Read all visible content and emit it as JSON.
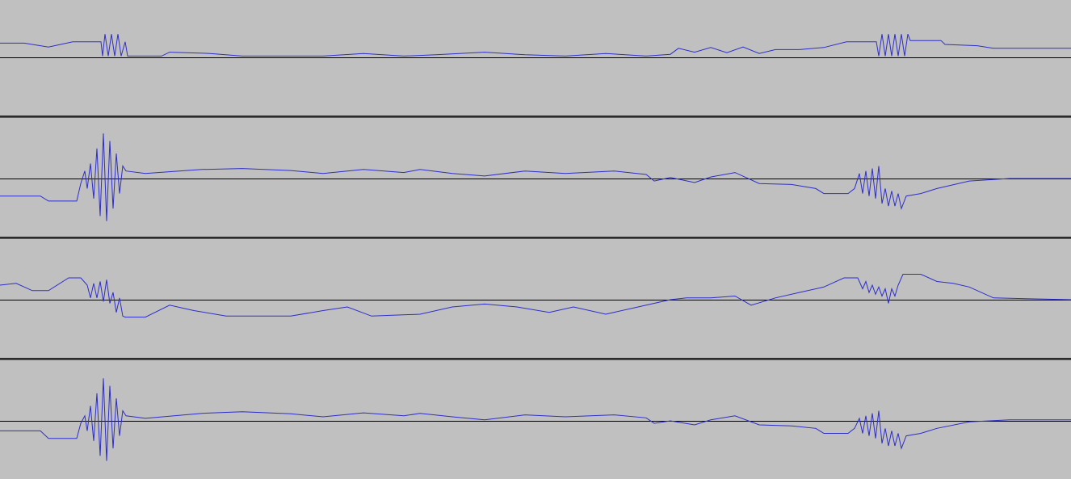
{
  "app": {
    "view": "waveform-tracks"
  },
  "colors": {
    "background": "#c0c0c0",
    "waveform": "#2d2dcc",
    "baseline": "#000000",
    "separator": "#2b2b2b"
  },
  "tracks": [
    {
      "name": "track-1",
      "waveform": [
        [
          0,
          0.55
        ],
        [
          30,
          0.55
        ],
        [
          60,
          0.4
        ],
        [
          90,
          0.6
        ],
        [
          125,
          0.6
        ],
        [
          127,
          0.05
        ],
        [
          130,
          0.9
        ],
        [
          134,
          0.05
        ],
        [
          138,
          0.9
        ],
        [
          142,
          0.05
        ],
        [
          146,
          0.9
        ],
        [
          150,
          0.05
        ],
        [
          155,
          0.6
        ],
        [
          158,
          0.05
        ],
        [
          200,
          0.05
        ],
        [
          210,
          0.2
        ],
        [
          260,
          0.15
        ],
        [
          300,
          0.05
        ],
        [
          400,
          0.05
        ],
        [
          450,
          0.15
        ],
        [
          500,
          0.05
        ],
        [
          540,
          0.1
        ],
        [
          600,
          0.2
        ],
        [
          650,
          0.1
        ],
        [
          700,
          0.05
        ],
        [
          750,
          0.15
        ],
        [
          800,
          0.05
        ],
        [
          830,
          0.12
        ],
        [
          840,
          0.35
        ],
        [
          860,
          0.2
        ],
        [
          880,
          0.38
        ],
        [
          900,
          0.18
        ],
        [
          920,
          0.4
        ],
        [
          940,
          0.15
        ],
        [
          960,
          0.3
        ],
        [
          990,
          0.3
        ],
        [
          1020,
          0.38
        ],
        [
          1048,
          0.6
        ],
        [
          1085,
          0.6
        ],
        [
          1088,
          0.05
        ],
        [
          1092,
          0.9
        ],
        [
          1096,
          0.05
        ],
        [
          1100,
          0.9
        ],
        [
          1104,
          0.05
        ],
        [
          1108,
          0.9
        ],
        [
          1112,
          0.05
        ],
        [
          1116,
          0.9
        ],
        [
          1120,
          0.05
        ],
        [
          1124,
          0.9
        ],
        [
          1127,
          0.65
        ],
        [
          1165,
          0.65
        ],
        [
          1170,
          0.5
        ],
        [
          1210,
          0.45
        ],
        [
          1230,
          0.35
        ],
        [
          1326,
          0.35
        ]
      ]
    },
    {
      "name": "track-2",
      "waveform": [
        [
          0,
          -0.35
        ],
        [
          50,
          -0.35
        ],
        [
          60,
          -0.45
        ],
        [
          95,
          -0.45
        ],
        [
          100,
          -0.1
        ],
        [
          105,
          0.15
        ],
        [
          108,
          -0.2
        ],
        [
          112,
          0.3
        ],
        [
          116,
          -0.4
        ],
        [
          120,
          0.6
        ],
        [
          124,
          -0.75
        ],
        [
          128,
          0.9
        ],
        [
          132,
          -0.85
        ],
        [
          136,
          0.75
        ],
        [
          140,
          -0.6
        ],
        [
          144,
          0.5
        ],
        [
          148,
          -0.3
        ],
        [
          152,
          0.25
        ],
        [
          156,
          0.15
        ],
        [
          180,
          0.1
        ],
        [
          250,
          0.18
        ],
        [
          300,
          0.2
        ],
        [
          360,
          0.16
        ],
        [
          400,
          0.1
        ],
        [
          450,
          0.18
        ],
        [
          500,
          0.12
        ],
        [
          520,
          0.18
        ],
        [
          560,
          0.1
        ],
        [
          600,
          0.05
        ],
        [
          650,
          0.15
        ],
        [
          700,
          0.1
        ],
        [
          760,
          0.15
        ],
        [
          800,
          0.08
        ],
        [
          810,
          -0.05
        ],
        [
          830,
          0.02
        ],
        [
          860,
          -0.08
        ],
        [
          880,
          0.03
        ],
        [
          910,
          0.12
        ],
        [
          940,
          -0.1
        ],
        [
          980,
          -0.12
        ],
        [
          1010,
          -0.2
        ],
        [
          1020,
          -0.3
        ],
        [
          1050,
          -0.3
        ],
        [
          1058,
          -0.2
        ],
        [
          1064,
          0.1
        ],
        [
          1068,
          -0.3
        ],
        [
          1072,
          0.15
        ],
        [
          1076,
          -0.35
        ],
        [
          1080,
          0.2
        ],
        [
          1084,
          -0.4
        ],
        [
          1088,
          0.25
        ],
        [
          1092,
          -0.5
        ],
        [
          1096,
          -0.2
        ],
        [
          1100,
          -0.55
        ],
        [
          1104,
          -0.25
        ],
        [
          1108,
          -0.55
        ],
        [
          1112,
          -0.3
        ],
        [
          1116,
          -0.6
        ],
        [
          1122,
          -0.35
        ],
        [
          1140,
          -0.3
        ],
        [
          1160,
          -0.2
        ],
        [
          1200,
          -0.05
        ],
        [
          1250,
          0.0
        ],
        [
          1326,
          0.0
        ]
      ]
    },
    {
      "name": "track-3",
      "waveform": [
        [
          0,
          0.4
        ],
        [
          20,
          0.45
        ],
        [
          40,
          0.25
        ],
        [
          60,
          0.25
        ],
        [
          85,
          0.6
        ],
        [
          100,
          0.6
        ],
        [
          108,
          0.4
        ],
        [
          112,
          0.05
        ],
        [
          116,
          0.45
        ],
        [
          120,
          0.05
        ],
        [
          124,
          0.5
        ],
        [
          128,
          -0.05
        ],
        [
          132,
          0.55
        ],
        [
          136,
          -0.1
        ],
        [
          140,
          0.2
        ],
        [
          144,
          -0.35
        ],
        [
          148,
          0.05
        ],
        [
          152,
          -0.45
        ],
        [
          155,
          -0.48
        ],
        [
          180,
          -0.48
        ],
        [
          210,
          -0.15
        ],
        [
          240,
          -0.3
        ],
        [
          280,
          -0.45
        ],
        [
          360,
          -0.45
        ],
        [
          400,
          -0.3
        ],
        [
          430,
          -0.2
        ],
        [
          460,
          -0.45
        ],
        [
          520,
          -0.4
        ],
        [
          560,
          -0.2
        ],
        [
          600,
          -0.12
        ],
        [
          640,
          -0.2
        ],
        [
          680,
          -0.35
        ],
        [
          710,
          -0.2
        ],
        [
          750,
          -0.4
        ],
        [
          790,
          -0.2
        ],
        [
          830,
          0.0
        ],
        [
          850,
          0.05
        ],
        [
          880,
          0.05
        ],
        [
          910,
          0.1
        ],
        [
          930,
          -0.15
        ],
        [
          960,
          0.05
        ],
        [
          990,
          0.2
        ],
        [
          1020,
          0.35
        ],
        [
          1045,
          0.6
        ],
        [
          1062,
          0.6
        ],
        [
          1068,
          0.3
        ],
        [
          1072,
          0.5
        ],
        [
          1076,
          0.2
        ],
        [
          1080,
          0.4
        ],
        [
          1084,
          0.15
        ],
        [
          1088,
          0.35
        ],
        [
          1092,
          0.1
        ],
        [
          1096,
          0.3
        ],
        [
          1100,
          -0.1
        ],
        [
          1104,
          0.3
        ],
        [
          1108,
          0.1
        ],
        [
          1112,
          0.4
        ],
        [
          1118,
          0.7
        ],
        [
          1140,
          0.7
        ],
        [
          1160,
          0.5
        ],
        [
          1180,
          0.45
        ],
        [
          1200,
          0.35
        ],
        [
          1230,
          0.05
        ],
        [
          1326,
          0.0
        ]
      ]
    },
    {
      "name": "track-4",
      "waveform": [
        [
          0,
          -0.2
        ],
        [
          50,
          -0.2
        ],
        [
          60,
          -0.35
        ],
        [
          95,
          -0.35
        ],
        [
          100,
          -0.05
        ],
        [
          105,
          0.1
        ],
        [
          108,
          -0.2
        ],
        [
          112,
          0.3
        ],
        [
          116,
          -0.4
        ],
        [
          120,
          0.55
        ],
        [
          124,
          -0.7
        ],
        [
          128,
          0.85
        ],
        [
          132,
          -0.8
        ],
        [
          136,
          0.7
        ],
        [
          140,
          -0.55
        ],
        [
          144,
          0.45
        ],
        [
          148,
          -0.3
        ],
        [
          152,
          0.2
        ],
        [
          156,
          0.1
        ],
        [
          180,
          0.05
        ],
        [
          250,
          0.15
        ],
        [
          300,
          0.18
        ],
        [
          360,
          0.14
        ],
        [
          400,
          0.08
        ],
        [
          450,
          0.16
        ],
        [
          500,
          0.1
        ],
        [
          520,
          0.15
        ],
        [
          560,
          0.08
        ],
        [
          600,
          0.02
        ],
        [
          650,
          0.12
        ],
        [
          700,
          0.08
        ],
        [
          760,
          0.12
        ],
        [
          800,
          0.06
        ],
        [
          810,
          -0.05
        ],
        [
          830,
          0.0
        ],
        [
          860,
          -0.08
        ],
        [
          880,
          0.02
        ],
        [
          910,
          0.1
        ],
        [
          940,
          -0.08
        ],
        [
          980,
          -0.1
        ],
        [
          1010,
          -0.15
        ],
        [
          1020,
          -0.25
        ],
        [
          1050,
          -0.25
        ],
        [
          1058,
          -0.15
        ],
        [
          1064,
          0.05
        ],
        [
          1068,
          -0.25
        ],
        [
          1072,
          0.1
        ],
        [
          1076,
          -0.3
        ],
        [
          1080,
          0.15
        ],
        [
          1084,
          -0.35
        ],
        [
          1088,
          0.2
        ],
        [
          1092,
          -0.45
        ],
        [
          1096,
          -0.15
        ],
        [
          1100,
          -0.5
        ],
        [
          1104,
          -0.2
        ],
        [
          1108,
          -0.5
        ],
        [
          1112,
          -0.25
        ],
        [
          1116,
          -0.55
        ],
        [
          1122,
          -0.3
        ],
        [
          1140,
          -0.25
        ],
        [
          1160,
          -0.15
        ],
        [
          1200,
          -0.02
        ],
        [
          1250,
          0.02
        ],
        [
          1326,
          0.02
        ]
      ]
    }
  ]
}
